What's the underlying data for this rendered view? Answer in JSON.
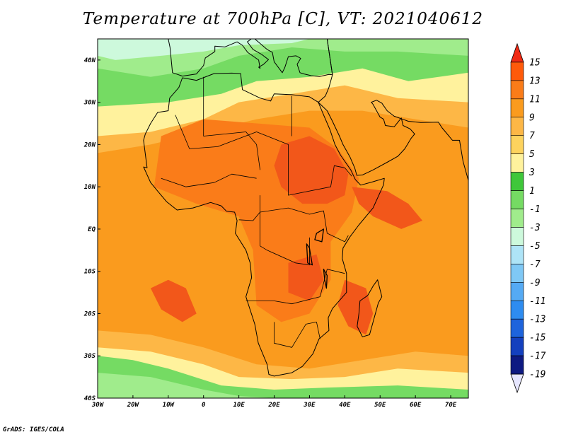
{
  "title": "Temperature at 700hPa [C], VT: 2021040612",
  "credit": "GrADS: IGES/COLA",
  "map": {
    "lon_range": [
      -30,
      75
    ],
    "lat_range": [
      -40,
      45
    ],
    "x_ticks": [
      "30W",
      "20W",
      "10W",
      "0",
      "10E",
      "20E",
      "30E",
      "40E",
      "50E",
      "60E",
      "70E"
    ],
    "y_ticks": [
      "40N",
      "30N",
      "20N",
      "10N",
      "EQ",
      "10S",
      "20S",
      "30S",
      "40S"
    ]
  },
  "colorbar": {
    "labels": [
      "15",
      "13",
      "11",
      "9",
      "7",
      "5",
      "3",
      "1",
      "-1",
      "-3",
      "-5",
      "-7",
      "-9",
      "-11",
      "-13",
      "-15",
      "-17",
      "-19"
    ],
    "colors": [
      "#f02a14",
      "#ff5a0a",
      "#fa7c19",
      "#fa9b1e",
      "#fdb746",
      "#fdd35e",
      "#fff29d",
      "#3fc73a",
      "#75db63",
      "#a0ec8c",
      "#cdf9dc",
      "#aee4f7",
      "#7fc8f5",
      "#55aaf4",
      "#2e8cf0",
      "#1e64dc",
      "#1440be",
      "#0e1a82",
      "#e6e6ff"
    ]
  },
  "palette": {
    "orange": "#fa9b1e",
    "dark_orange": "#fa7c19",
    "red_orange": "#f2571a",
    "yellow_orange": "#fdb746",
    "yellow": "#fff29d",
    "green": "#3fc73a",
    "light_green": "#75db63",
    "pale_green": "#a0ec8c",
    "cyan": "#cdf9dc",
    "light_blue": "#aee4f7"
  }
}
